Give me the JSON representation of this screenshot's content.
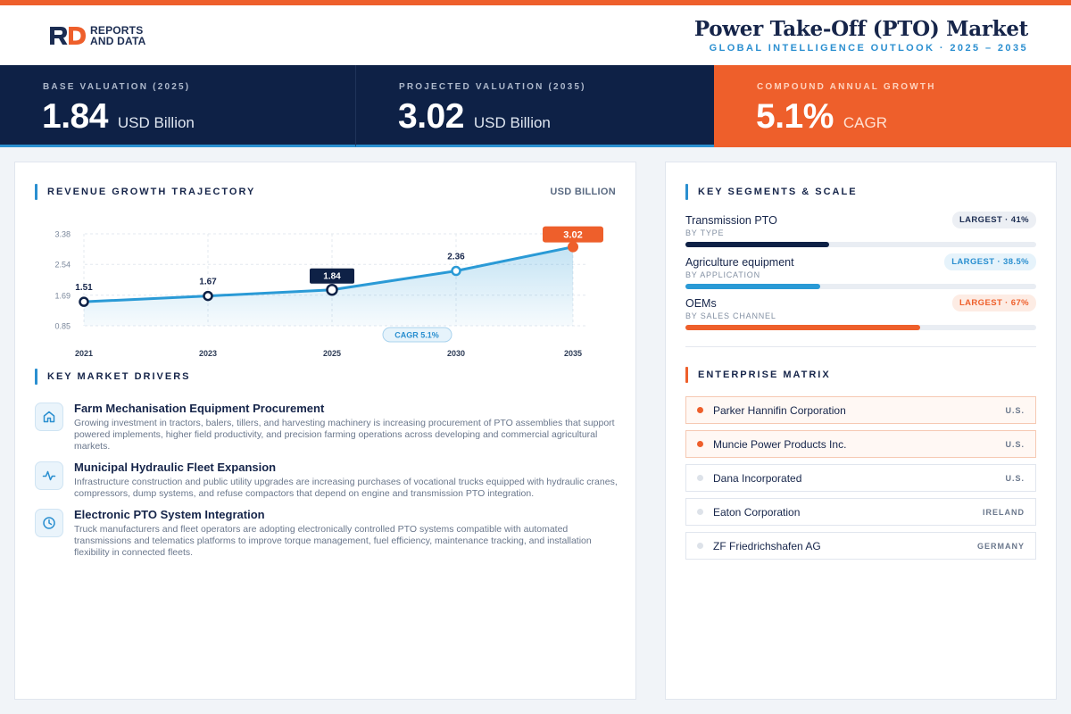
{
  "brand": {
    "line1": "REPORTS",
    "line2": "AND DATA"
  },
  "header": {
    "title": "Power Take-Off (PTO) Market",
    "subtitle": "GLOBAL INTELLIGENCE OUTLOOK  ·  2025 – 2035"
  },
  "kpis": [
    {
      "label": "BASE VALUATION (2025)",
      "value": "1.84",
      "unit": "USD Billion"
    },
    {
      "label": "PROJECTED VALUATION (2035)",
      "value": "3.02",
      "unit": "USD Billion"
    },
    {
      "label": "COMPOUND ANNUAL GROWTH",
      "value": "5.1%",
      "unit": "CAGR"
    }
  ],
  "revenue": {
    "title": "REVENUE GROWTH TRAJECTORY",
    "unit_label": "USD BILLION"
  },
  "chart_data": {
    "type": "area",
    "categories": [
      "2021",
      "2023",
      "2025",
      "2030",
      "2035"
    ],
    "values": [
      1.51,
      1.67,
      1.84,
      2.36,
      3.02
    ],
    "value_labels": [
      "1.51",
      "1.67",
      "1.84",
      "2.36",
      "3.02"
    ],
    "yticks": [
      "3.38",
      "2.54",
      "1.69",
      "0.85"
    ],
    "ylim": [
      0.85,
      3.38
    ],
    "annotation": "CAGR 5.1%",
    "highlight_base": "2025",
    "highlight_end": "2035",
    "grid": true,
    "colors": {
      "line": "#2a9ad6",
      "base": "#0e2146",
      "end": "#ee5f2b"
    }
  },
  "drivers": {
    "title": "KEY MARKET DRIVERS",
    "items": [
      {
        "icon": "home-icon",
        "title": "Farm Mechanisation Equipment Procurement",
        "text": "Growing investment in tractors, balers, tillers, and harvesting machinery is increasing procurement of PTO assemblies that support powered implements, higher field productivity, and precision farming operations across developing and commercial agricultural markets."
      },
      {
        "icon": "activity-icon",
        "title": "Municipal Hydraulic Fleet Expansion",
        "text": "Infrastructure construction and public utility upgrades are increasing purchases of vocational trucks equipped with hydraulic cranes, compressors, dump systems, and refuse compactors that depend on engine and transmission PTO integration."
      },
      {
        "icon": "clock-icon",
        "title": "Electronic PTO System Integration",
        "text": "Truck manufacturers and fleet operators are adopting electronically controlled PTO systems compatible with automated transmissions and telematics platforms to improve torque management, fuel efficiency, maintenance tracking, and installation flexibility in connected fleets."
      }
    ]
  },
  "segments": {
    "title": "KEY SEGMENTS & SCALE",
    "items": [
      {
        "name": "Transmission PTO",
        "category": "BY TYPE",
        "badge": "LARGEST · 41%",
        "share": 0.41,
        "color": "#0e2146"
      },
      {
        "name": "Agriculture equipment",
        "category": "BY APPLICATION",
        "badge": "LARGEST · 38.5%",
        "share": 0.385,
        "color": "#2a9ad6"
      },
      {
        "name": "OEMs",
        "category": "BY SALES CHANNEL",
        "badge": "LARGEST · 67%",
        "share": 0.67,
        "color": "#ee5f2b"
      }
    ]
  },
  "enterprise": {
    "title": "ENTERPRISE MATRIX",
    "items": [
      {
        "name": "Parker Hannifin Corporation",
        "country": "U.S.",
        "highlight": true
      },
      {
        "name": "Muncie Power Products Inc.",
        "country": "U.S.",
        "highlight": true
      },
      {
        "name": "Dana Incorporated",
        "country": "U.S.",
        "highlight": false
      },
      {
        "name": "Eaton Corporation",
        "country": "IRELAND",
        "highlight": false
      },
      {
        "name": "ZF Friedrichshafen AG",
        "country": "GERMANY",
        "highlight": false
      }
    ]
  }
}
